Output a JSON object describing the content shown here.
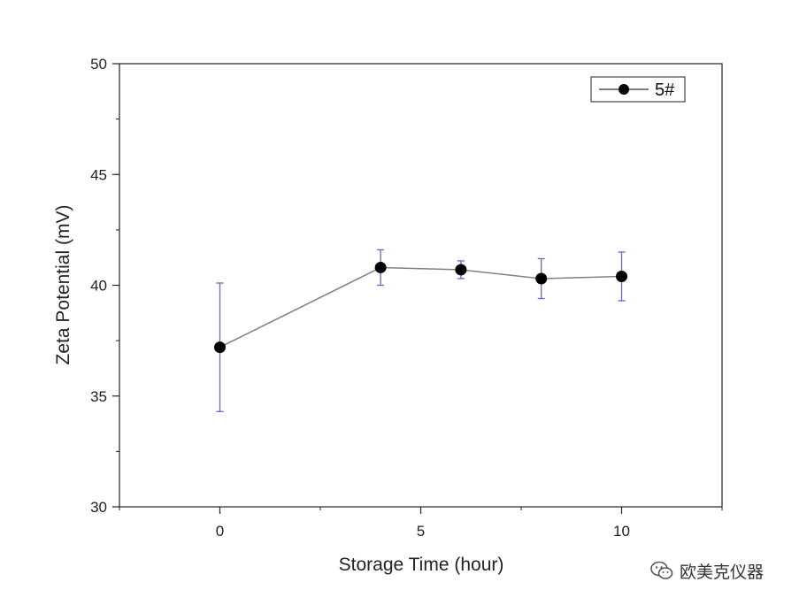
{
  "chart_data": {
    "type": "line",
    "title": "",
    "xlabel": "Storage Time (hour)",
    "ylabel": "Zeta Potential (mV)",
    "xlim": [
      -2.5,
      12.5
    ],
    "ylim": [
      30,
      50
    ],
    "x_ticks": [
      0,
      5,
      10
    ],
    "x_minor_ticks": [
      -2.5,
      2.5,
      7.5,
      12.5
    ],
    "y_ticks": [
      30,
      35,
      40,
      45,
      50
    ],
    "y_minor_ticks": [
      32.5,
      37.5,
      42.5,
      47.5
    ],
    "grid": false,
    "legend_position": "top-right",
    "series": [
      {
        "name": "5#",
        "color": "#000000",
        "line_color": "#808080",
        "error_color": "#6666cc",
        "x": [
          0,
          4,
          6,
          8,
          10
        ],
        "y": [
          37.2,
          40.8,
          40.7,
          40.3,
          40.4
        ],
        "error_low": [
          34.3,
          40.0,
          40.3,
          39.4,
          39.3
        ],
        "error_high": [
          40.1,
          41.6,
          41.1,
          41.2,
          41.5
        ]
      }
    ]
  },
  "watermark": {
    "icon": "wechat-icon",
    "text": "欧美克仪器"
  }
}
